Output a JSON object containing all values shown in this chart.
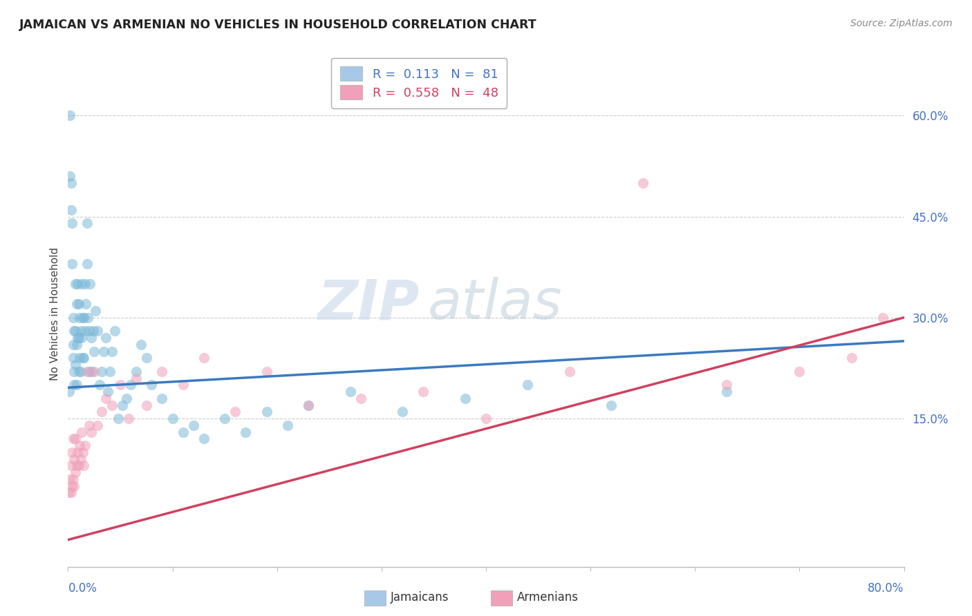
{
  "title": "JAMAICAN VS ARMENIAN NO VEHICLES IN HOUSEHOLD CORRELATION CHART",
  "source": "Source: ZipAtlas.com",
  "ylabel": "No Vehicles in Household",
  "yticks": [
    0.0,
    0.15,
    0.3,
    0.45,
    0.6
  ],
  "ytick_labels": [
    "",
    "15.0%",
    "30.0%",
    "45.0%",
    "60.0%"
  ],
  "xlim": [
    0.0,
    0.8
  ],
  "ylim": [
    -0.07,
    0.68
  ],
  "legend_entries": [
    {
      "label": "R =  0.113   N =  81",
      "color": "#a8c8e8"
    },
    {
      "label": "R =  0.558   N =  48",
      "color": "#f0a0b8"
    }
  ],
  "legend_labels": [
    "Jamaicans",
    "Armenians"
  ],
  "jamaican_color": "#7ab8d8",
  "armenian_color": "#f0a0b8",
  "jamaican_trend_color": "#3a7abf",
  "armenian_trend_color": "#d04060",
  "watermark_zip": "ZIP",
  "watermark_atlas": "atlas",
  "jamaican_x": [
    0.001,
    0.002,
    0.002,
    0.003,
    0.003,
    0.004,
    0.004,
    0.005,
    0.005,
    0.005,
    0.006,
    0.006,
    0.006,
    0.007,
    0.007,
    0.007,
    0.008,
    0.008,
    0.008,
    0.009,
    0.009,
    0.01,
    0.01,
    0.01,
    0.011,
    0.011,
    0.012,
    0.012,
    0.013,
    0.013,
    0.014,
    0.014,
    0.015,
    0.015,
    0.016,
    0.016,
    0.017,
    0.018,
    0.018,
    0.019,
    0.02,
    0.02,
    0.021,
    0.022,
    0.023,
    0.024,
    0.025,
    0.026,
    0.028,
    0.03,
    0.032,
    0.034,
    0.036,
    0.038,
    0.04,
    0.042,
    0.045,
    0.048,
    0.052,
    0.056,
    0.06,
    0.065,
    0.07,
    0.075,
    0.08,
    0.09,
    0.1,
    0.11,
    0.12,
    0.13,
    0.15,
    0.17,
    0.19,
    0.21,
    0.23,
    0.27,
    0.32,
    0.38,
    0.44,
    0.52,
    0.63
  ],
  "jamaican_y": [
    0.19,
    0.6,
    0.51,
    0.5,
    0.46,
    0.44,
    0.38,
    0.3,
    0.26,
    0.24,
    0.28,
    0.22,
    0.2,
    0.35,
    0.28,
    0.23,
    0.32,
    0.26,
    0.2,
    0.35,
    0.27,
    0.32,
    0.27,
    0.22,
    0.3,
    0.24,
    0.28,
    0.22,
    0.35,
    0.27,
    0.3,
    0.24,
    0.3,
    0.24,
    0.35,
    0.28,
    0.32,
    0.44,
    0.38,
    0.3,
    0.28,
    0.22,
    0.35,
    0.27,
    0.22,
    0.28,
    0.25,
    0.31,
    0.28,
    0.2,
    0.22,
    0.25,
    0.27,
    0.19,
    0.22,
    0.25,
    0.28,
    0.15,
    0.17,
    0.18,
    0.2,
    0.22,
    0.26,
    0.24,
    0.2,
    0.18,
    0.15,
    0.13,
    0.14,
    0.12,
    0.15,
    0.13,
    0.16,
    0.14,
    0.17,
    0.19,
    0.16,
    0.18,
    0.2,
    0.17,
    0.19
  ],
  "armenian_x": [
    0.001,
    0.002,
    0.003,
    0.003,
    0.004,
    0.004,
    0.005,
    0.005,
    0.006,
    0.006,
    0.007,
    0.007,
    0.008,
    0.009,
    0.01,
    0.011,
    0.012,
    0.013,
    0.014,
    0.015,
    0.016,
    0.018,
    0.02,
    0.022,
    0.025,
    0.028,
    0.032,
    0.036,
    0.042,
    0.05,
    0.058,
    0.065,
    0.075,
    0.09,
    0.11,
    0.13,
    0.16,
    0.19,
    0.23,
    0.28,
    0.34,
    0.4,
    0.48,
    0.55,
    0.63,
    0.7,
    0.75,
    0.78
  ],
  "armenian_y": [
    0.04,
    0.06,
    0.04,
    0.08,
    0.05,
    0.1,
    0.06,
    0.12,
    0.05,
    0.09,
    0.07,
    0.12,
    0.08,
    0.1,
    0.08,
    0.11,
    0.09,
    0.13,
    0.1,
    0.08,
    0.11,
    0.22,
    0.14,
    0.13,
    0.22,
    0.14,
    0.16,
    0.18,
    0.17,
    0.2,
    0.15,
    0.21,
    0.17,
    0.22,
    0.2,
    0.24,
    0.16,
    0.22,
    0.17,
    0.18,
    0.19,
    0.15,
    0.22,
    0.5,
    0.2,
    0.22,
    0.24,
    0.3
  ],
  "jamaican_trend": [
    0.0,
    0.196,
    0.8,
    0.265
  ],
  "armenian_trend": [
    0.0,
    -0.03,
    0.8,
    0.3
  ]
}
